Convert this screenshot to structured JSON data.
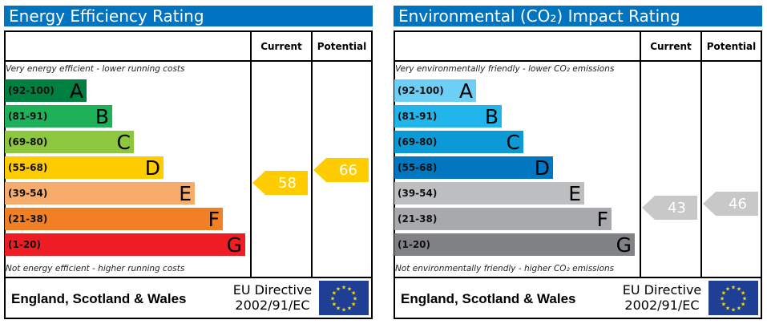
{
  "chart_data": [
    {
      "type": "bar",
      "title": "Energy Efficiency Rating",
      "column_headers": {
        "current": "Current",
        "potential": "Potential"
      },
      "top_note": "Very energy efficient - lower running costs",
      "bottom_note": "Not energy efficient - higher running costs",
      "bands": [
        {
          "range": "(92-100)",
          "letter": "A",
          "min": 92,
          "max": 100,
          "color": "#008040"
        },
        {
          "range": "(81-91)",
          "letter": "B",
          "min": 81,
          "max": 91,
          "color": "#1fb05a"
        },
        {
          "range": "(69-80)",
          "letter": "C",
          "min": 69,
          "max": 80,
          "color": "#8dc63f"
        },
        {
          "range": "(55-68)",
          "letter": "D",
          "min": 55,
          "max": 68,
          "color": "#ffcc00"
        },
        {
          "range": "(39-54)",
          "letter": "E",
          "min": 39,
          "max": 54,
          "color": "#f7ac6b"
        },
        {
          "range": "(21-38)",
          "letter": "F",
          "min": 21,
          "max": 38,
          "color": "#f08023"
        },
        {
          "range": "(1-20)",
          "letter": "G",
          "min": 1,
          "max": 20,
          "color": "#ee1d23"
        }
      ],
      "current": {
        "value": 58,
        "color": "#ffcc00"
      },
      "potential": {
        "value": 66,
        "color": "#ffcc00"
      },
      "footer": {
        "country": "England, Scotland & Wales",
        "directive_line1": "EU Directive",
        "directive_line2": "2002/91/EC"
      }
    },
    {
      "type": "bar",
      "title": "Environmental (CO₂) Impact Rating",
      "column_headers": {
        "current": "Current",
        "potential": "Potential"
      },
      "top_note": "Very environmentally friendly - lower CO₂ emissions",
      "bottom_note": "Not environmentally friendly - higher CO₂ emissions",
      "bands": [
        {
          "range": "(92-100)",
          "letter": "A",
          "min": 92,
          "max": 100,
          "color": "#6dcff6"
        },
        {
          "range": "(81-91)",
          "letter": "B",
          "min": 81,
          "max": 91,
          "color": "#22b5eb"
        },
        {
          "range": "(69-80)",
          "letter": "C",
          "min": 69,
          "max": 80,
          "color": "#0b9ad6"
        },
        {
          "range": "(55-68)",
          "letter": "D",
          "min": 55,
          "max": 68,
          "color": "#0077c0"
        },
        {
          "range": "(39-54)",
          "letter": "E",
          "min": 39,
          "max": 54,
          "color": "#bcbec0"
        },
        {
          "range": "(21-38)",
          "letter": "F",
          "min": 21,
          "max": 38,
          "color": "#a7a9ac"
        },
        {
          "range": "(1-20)",
          "letter": "G",
          "min": 1,
          "max": 20,
          "color": "#808285"
        }
      ],
      "current": {
        "value": 43,
        "color": "#c8c8c8"
      },
      "potential": {
        "value": 46,
        "color": "#c8c8c8"
      },
      "footer": {
        "country": "England, Scotland & Wales",
        "directive_line1": "EU Directive",
        "directive_line2": "2002/91/EC"
      }
    }
  ]
}
